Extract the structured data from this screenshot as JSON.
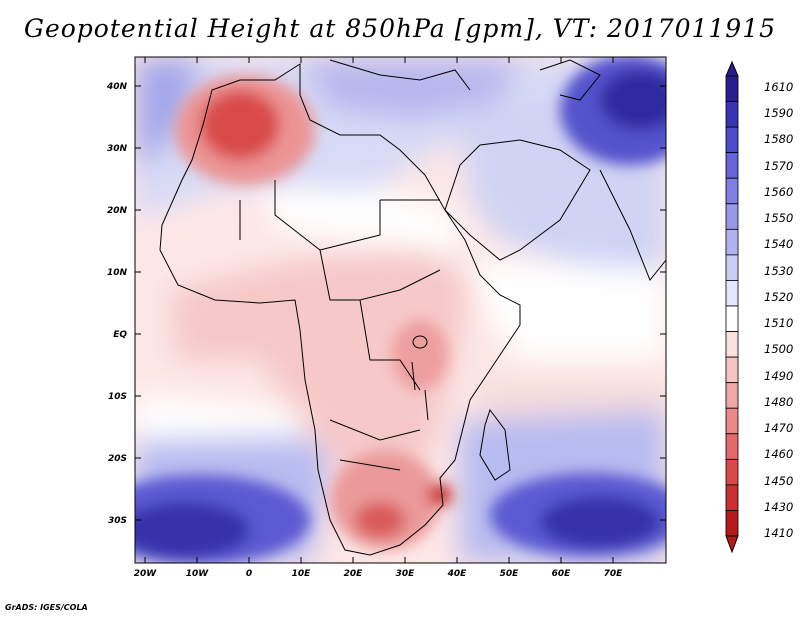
{
  "title": "Geopotential Height at 850hPa [gpm], VT: 2017011915",
  "credit": "GrADS: IGES/COLA",
  "map": {
    "lat_labels": [
      "40N",
      "30N",
      "20N",
      "10N",
      "EQ",
      "10S",
      "20S",
      "30S"
    ],
    "lon_labels": [
      "20W",
      "10W",
      "0",
      "10E",
      "20E",
      "30E",
      "40E",
      "50E",
      "60E",
      "70E"
    ],
    "lon_range": [
      -22,
      80
    ],
    "lat_range": [
      -37,
      45
    ]
  },
  "colorbar": {
    "labels": [
      "1610",
      "1590",
      "1580",
      "1570",
      "1560",
      "1550",
      "1540",
      "1530",
      "1520",
      "1510",
      "1500",
      "1490",
      "1480",
      "1470",
      "1460",
      "1450",
      "1430",
      "1410"
    ],
    "colors": [
      "#2a1d8f",
      "#3a34b3",
      "#4e4acc",
      "#6664d8",
      "#7f7fe2",
      "#9898e9",
      "#b0b3ef",
      "#cacdf5",
      "#e4e6fa",
      "#ffffff",
      "#fbe0e0",
      "#f7c4c4",
      "#f1a6a6",
      "#ea8888",
      "#e36a6a",
      "#d84a4a",
      "#c93030",
      "#b51b1b"
    ]
  },
  "field_anomalies": [
    {
      "name": "atlas-low",
      "lon": 0,
      "lat": 32,
      "value": 1460
    },
    {
      "name": "southern-africa-low",
      "lon": 27,
      "lat": -27,
      "value": 1470
    },
    {
      "name": "mozambique-low",
      "lon": 37,
      "lat": -26,
      "value": 1450
    },
    {
      "name": "tibet-high",
      "lon": 77,
      "lat": 37,
      "value": 1600
    },
    {
      "name": "south-atlantic-high",
      "lon": -12,
      "lat": -33,
      "value": 1600
    },
    {
      "name": "south-indian-high",
      "lon": 65,
      "lat": -32,
      "value": 1600
    }
  ]
}
